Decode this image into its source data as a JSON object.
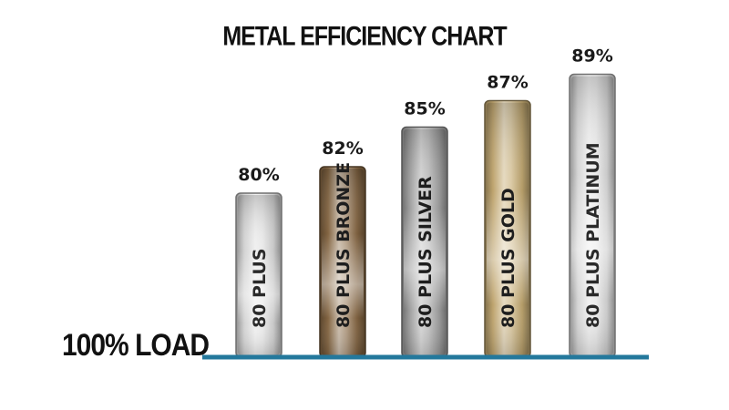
{
  "chart_data": {
    "type": "bar",
    "title": "METAL EFFICIENCY CHART",
    "xlabel": "",
    "ylabel": "",
    "category_axis_label": "100% LOAD",
    "categories": [
      "80 PLUS",
      "80 PLUS BRONZE",
      "80 PLUS SILVER",
      "80 PLUS GOLD",
      "80 PLUS PLATINUM"
    ],
    "values": [
      80,
      82,
      85,
      87,
      89
    ],
    "value_labels": [
      "80%",
      "82%",
      "85%",
      "87%",
      "89%"
    ],
    "ylim": [
      70,
      90
    ],
    "grid": false,
    "legend": "none",
    "bar_colors": [
      "#dedede",
      "#8a6a45",
      "#a8a8a8",
      "#c8ad74",
      "#e0e0e0"
    ],
    "baseline_color": "#23789c"
  }
}
